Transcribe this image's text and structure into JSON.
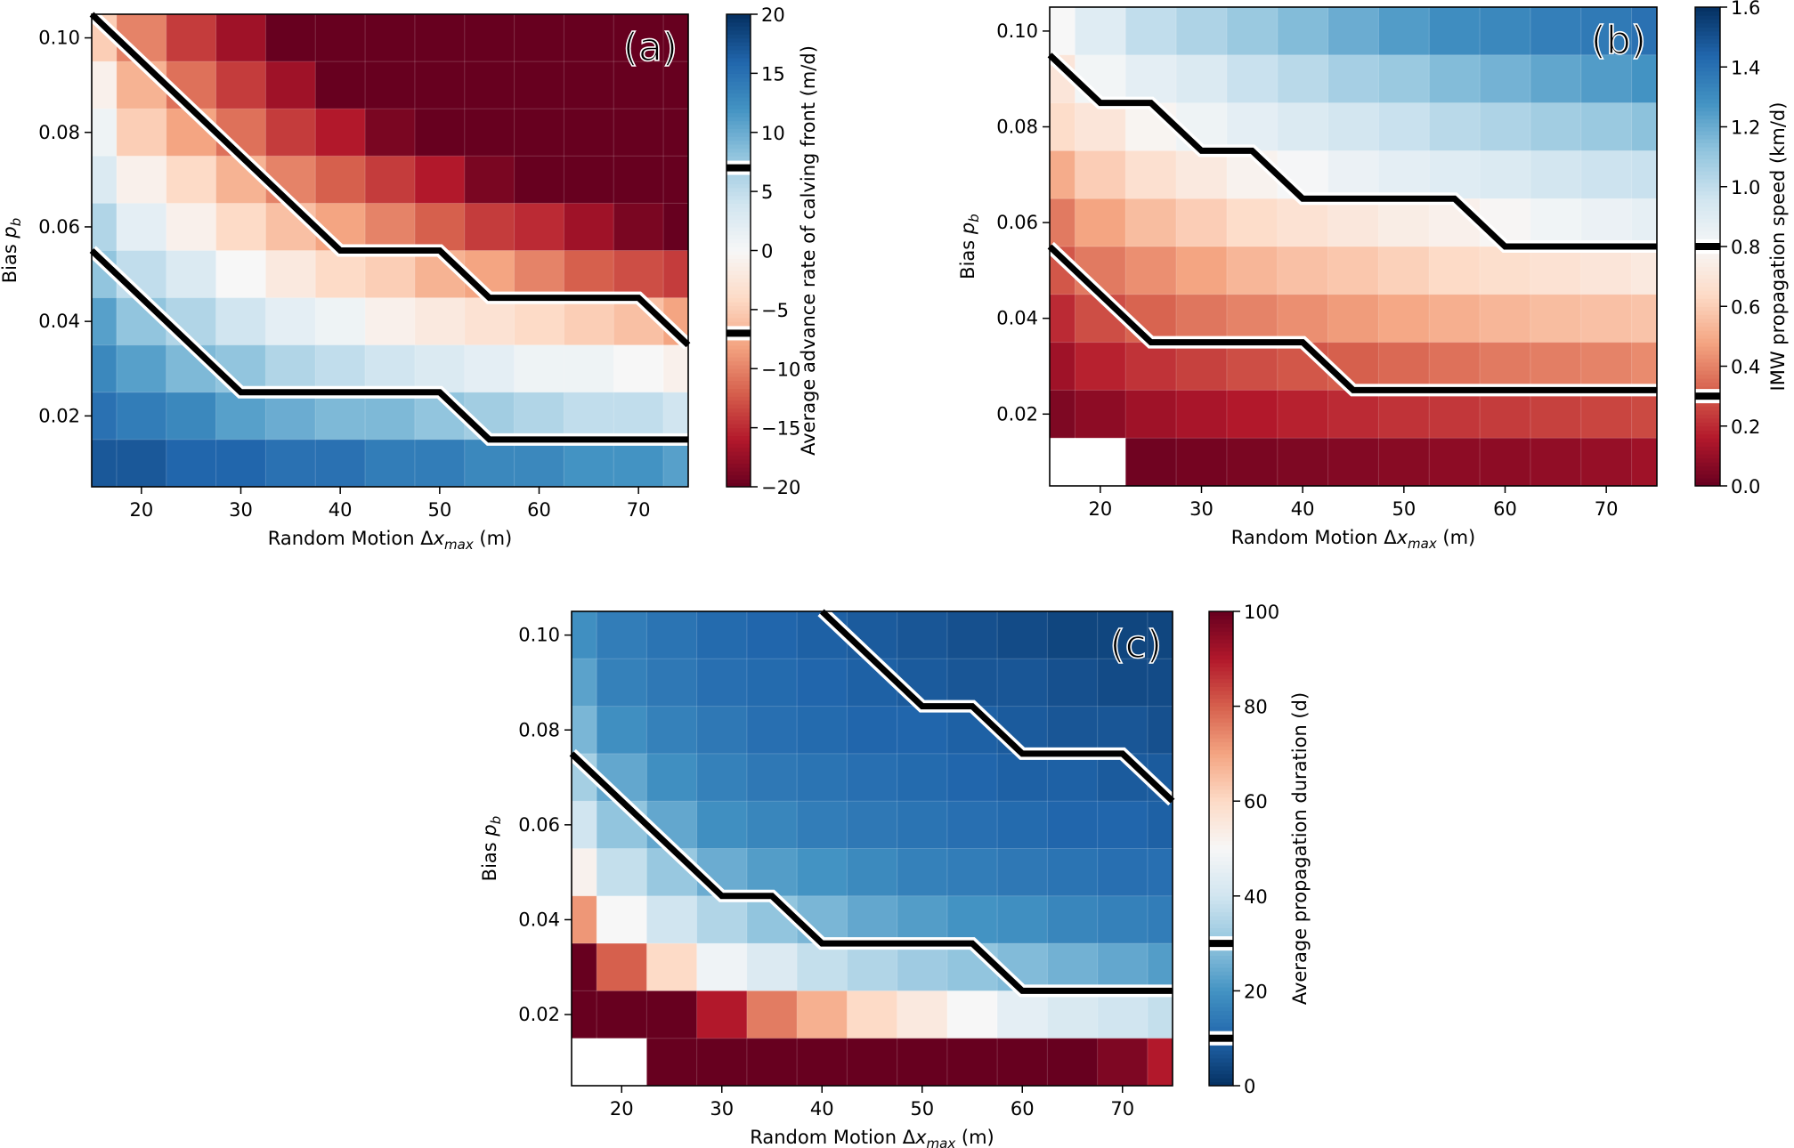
{
  "chart_data": [
    {
      "id": "a",
      "type": "heatmap",
      "panel_label": "(a)",
      "xlabel_main": "Random Motion Δ",
      "xlabel_var": "x",
      "xlabel_sub": "max",
      "xlabel_unit": " (m)",
      "ylabel_main": "Bias ",
      "ylabel_var": "p",
      "ylabel_sub": "b",
      "x": [
        15,
        20,
        25,
        30,
        35,
        40,
        45,
        50,
        55,
        60,
        65,
        70,
        75
      ],
      "y": [
        0.1,
        0.09,
        0.08,
        0.07,
        0.06,
        0.05,
        0.04,
        0.03,
        0.02,
        0.01
      ],
      "xlim": [
        15,
        75
      ],
      "ylim": [
        0.005,
        0.105
      ],
      "xticks": [
        20,
        30,
        40,
        50,
        60,
        70
      ],
      "xtick_labels": [
        "20",
        "30",
        "40",
        "50",
        "60",
        "70"
      ],
      "yticks": [
        0.1,
        0.08,
        0.06,
        0.04,
        0.02
      ],
      "ytick_labels": [
        "0.10",
        "0.08",
        "0.06",
        "0.04",
        "0.02"
      ],
      "colormap": "RdBu",
      "colorbar": {
        "label": "Average advance rate of calving front (m/d)",
        "range": [
          -20,
          20
        ],
        "ticks": [
          20,
          15,
          10,
          5,
          0,
          -5,
          -10,
          -15,
          -20
        ],
        "tick_labels": [
          "20",
          "15",
          "10",
          "5",
          "0",
          "−5",
          "−10",
          "−15",
          "−20"
        ],
        "contour_levels": [
          7,
          -7
        ]
      },
      "values": [
        [
          -5,
          -10,
          -14,
          -17,
          -20,
          -20,
          -20,
          -20,
          -20,
          -20,
          -20,
          -20,
          -20
        ],
        [
          -1,
          -7,
          -11,
          -14,
          -17,
          -20,
          -20,
          -20,
          -20,
          -20,
          -20,
          -20,
          -20
        ],
        [
          1,
          -5,
          -8,
          -11,
          -14,
          -16,
          -19,
          -20,
          -20,
          -20,
          -20,
          -20,
          -20
        ],
        [
          3,
          -1,
          -4,
          -7,
          -10,
          -12,
          -14,
          -16,
          -19,
          -20,
          -20,
          -20,
          -20
        ],
        [
          6,
          2,
          -1,
          -4,
          -6,
          -8,
          -10,
          -12,
          -14,
          -15,
          -17,
          -19,
          -20
        ],
        [
          8,
          5,
          3,
          0,
          -2,
          -4,
          -5,
          -7,
          -8,
          -10,
          -12,
          -13,
          -14
        ],
        [
          11,
          8,
          6,
          4,
          2,
          1,
          -1,
          -2,
          -3,
          -4,
          -5,
          -6,
          -8
        ],
        [
          13,
          11,
          9,
          8,
          6,
          5,
          4,
          3,
          2,
          1,
          1,
          0,
          -1
        ],
        [
          15,
          14,
          13,
          11,
          10,
          9,
          9,
          8,
          7,
          6,
          5,
          5,
          4
        ],
        [
          17,
          17,
          16,
          16,
          15,
          15,
          14,
          14,
          13,
          13,
          12,
          12,
          11
        ]
      ],
      "contours": [
        {
          "level": -7,
          "points": [
            [
              15,
              0.105
            ],
            [
              40,
              0.055
            ],
            [
              50,
              0.055
            ],
            [
              55,
              0.045
            ],
            [
              70,
              0.045
            ],
            [
              75,
              0.035
            ]
          ]
        },
        {
          "level": 7,
          "points": [
            [
              15,
              0.055
            ],
            [
              30,
              0.025
            ],
            [
              50,
              0.025
            ],
            [
              55,
              0.015
            ],
            [
              75,
              0.015
            ]
          ]
        }
      ]
    },
    {
      "id": "b",
      "type": "heatmap",
      "panel_label": "(b)",
      "xlabel_main": "Random Motion Δ",
      "xlabel_var": "x",
      "xlabel_sub": "max",
      "xlabel_unit": " (m)",
      "ylabel_main": "Bias ",
      "ylabel_var": "p",
      "ylabel_sub": "b",
      "x": [
        15,
        20,
        25,
        30,
        35,
        40,
        45,
        50,
        55,
        60,
        65,
        70,
        75
      ],
      "y": [
        0.1,
        0.09,
        0.08,
        0.07,
        0.06,
        0.05,
        0.04,
        0.03,
        0.02,
        0.01
      ],
      "xlim": [
        15,
        75
      ],
      "ylim": [
        0.005,
        0.105
      ],
      "xticks": [
        20,
        30,
        40,
        50,
        60,
        70
      ],
      "xtick_labels": [
        "20",
        "30",
        "40",
        "50",
        "60",
        "70"
      ],
      "yticks": [
        0.1,
        0.08,
        0.06,
        0.04,
        0.02
      ],
      "ytick_labels": [
        "0.10",
        "0.08",
        "0.06",
        "0.04",
        "0.02"
      ],
      "colormap": "RdBu",
      "colorbar": {
        "label": "IMW propagation speed (km/d)",
        "range": [
          0.0,
          1.6
        ],
        "ticks": [
          1.6,
          1.4,
          1.2,
          1.0,
          0.8,
          0.6,
          0.4,
          0.2,
          0.0
        ],
        "tick_labels": [
          "1.6",
          "1.4",
          "1.2",
          "1.0",
          "0.8",
          "0.6",
          "0.4",
          "0.2",
          "0.0"
        ],
        "contour_levels": [
          0.8,
          0.3
        ]
      },
      "values": [
        [
          0.8,
          0.9,
          1.0,
          1.05,
          1.1,
          1.15,
          1.2,
          1.25,
          1.3,
          1.32,
          1.35,
          1.37,
          1.4
        ],
        [
          0.7,
          0.82,
          0.88,
          0.92,
          0.98,
          1.02,
          1.07,
          1.1,
          1.15,
          1.18,
          1.22,
          1.25,
          1.28
        ],
        [
          0.65,
          0.7,
          0.78,
          0.84,
          0.88,
          0.92,
          0.95,
          0.98,
          1.02,
          1.05,
          1.08,
          1.1,
          1.13
        ],
        [
          0.5,
          0.6,
          0.67,
          0.72,
          0.77,
          0.81,
          0.85,
          0.88,
          0.9,
          0.92,
          0.95,
          0.97,
          0.98
        ],
        [
          0.38,
          0.48,
          0.55,
          0.6,
          0.65,
          0.68,
          0.71,
          0.74,
          0.76,
          0.79,
          0.83,
          0.85,
          0.87
        ],
        [
          0.3,
          0.38,
          0.43,
          0.48,
          0.53,
          0.56,
          0.58,
          0.61,
          0.64,
          0.66,
          0.68,
          0.7,
          0.72
        ],
        [
          0.2,
          0.28,
          0.33,
          0.37,
          0.4,
          0.43,
          0.46,
          0.49,
          0.51,
          0.53,
          0.55,
          0.56,
          0.57
        ],
        [
          0.12,
          0.18,
          0.22,
          0.25,
          0.28,
          0.3,
          0.32,
          0.34,
          0.36,
          0.38,
          0.39,
          0.4,
          0.42
        ],
        [
          0.05,
          0.08,
          0.12,
          0.14,
          0.16,
          0.18,
          0.2,
          0.22,
          0.23,
          0.24,
          0.25,
          0.26,
          0.27
        ],
        [
          null,
          null,
          0.02,
          0.03,
          0.04,
          0.05,
          0.06,
          0.07,
          0.08,
          0.08,
          0.09,
          0.1,
          0.12
        ]
      ],
      "contours": [
        {
          "level": 0.8,
          "points": [
            [
              15,
              0.095
            ],
            [
              20,
              0.085
            ],
            [
              25,
              0.085
            ],
            [
              30,
              0.075
            ],
            [
              35,
              0.075
            ],
            [
              40,
              0.065
            ],
            [
              55,
              0.065
            ],
            [
              60,
              0.055
            ],
            [
              75,
              0.055
            ]
          ]
        },
        {
          "level": 0.3,
          "points": [
            [
              15,
              0.055
            ],
            [
              25,
              0.035
            ],
            [
              40,
              0.035
            ],
            [
              45,
              0.025
            ],
            [
              75,
              0.025
            ]
          ]
        }
      ]
    },
    {
      "id": "c",
      "type": "heatmap",
      "panel_label": "(c)",
      "xlabel_main": "Random Motion Δ",
      "xlabel_var": "x",
      "xlabel_sub": "max",
      "xlabel_unit": " (m)",
      "ylabel_main": "Bias ",
      "ylabel_var": "p",
      "ylabel_sub": "b",
      "x": [
        15,
        20,
        25,
        30,
        35,
        40,
        45,
        50,
        55,
        60,
        65,
        70,
        75
      ],
      "y": [
        0.1,
        0.09,
        0.08,
        0.07,
        0.06,
        0.05,
        0.04,
        0.03,
        0.02,
        0.01
      ],
      "xlim": [
        15,
        75
      ],
      "ylim": [
        0.005,
        0.105
      ],
      "xticks": [
        20,
        30,
        40,
        50,
        60,
        70
      ],
      "xtick_labels": [
        "20",
        "30",
        "40",
        "50",
        "60",
        "70"
      ],
      "yticks": [
        0.1,
        0.08,
        0.06,
        0.04,
        0.02
      ],
      "ytick_labels": [
        "0.10",
        "0.08",
        "0.06",
        "0.04",
        "0.02"
      ],
      "colormap": "RdBu_r",
      "colorbar": {
        "label": "Average propagation duration (d)",
        "range": [
          0,
          100
        ],
        "ticks": [
          100,
          80,
          60,
          40,
          20,
          0
        ],
        "tick_labels": [
          "100",
          "80",
          "60",
          "40",
          "20",
          "0"
        ],
        "contour_levels": [
          30,
          10
        ]
      },
      "values": [
        [
          19,
          15,
          13,
          11,
          10,
          9,
          8,
          7,
          6,
          5,
          4,
          4,
          4
        ],
        [
          23,
          16,
          14,
          12,
          11,
          10,
          9,
          8,
          7,
          7,
          6,
          5,
          5
        ],
        [
          27,
          19,
          16,
          14,
          12,
          11,
          10,
          10,
          9,
          8,
          7,
          7,
          6
        ],
        [
          33,
          24,
          19,
          16,
          14,
          13,
          12,
          11,
          10,
          9,
          9,
          8,
          8
        ],
        [
          40,
          30,
          24,
          19,
          17,
          15,
          14,
          13,
          12,
          11,
          10,
          10,
          9
        ],
        [
          52,
          38,
          31,
          25,
          22,
          20,
          18,
          16,
          15,
          14,
          13,
          12,
          12
        ],
        [
          72,
          50,
          40,
          35,
          30,
          27,
          24,
          22,
          20,
          19,
          17,
          16,
          15
        ],
        [
          100,
          80,
          60,
          48,
          43,
          38,
          35,
          32,
          30,
          28,
          26,
          24,
          22
        ],
        [
          100,
          100,
          100,
          90,
          76,
          68,
          60,
          55,
          50,
          45,
          42,
          40,
          38
        ],
        [
          null,
          null,
          100,
          100,
          100,
          100,
          100,
          100,
          100,
          100,
          100,
          97,
          90
        ]
      ],
      "contours": [
        {
          "level": 10,
          "points": [
            [
              40,
              0.105
            ],
            [
              50,
              0.085
            ],
            [
              55,
              0.085
            ],
            [
              60,
              0.075
            ],
            [
              70,
              0.075
            ],
            [
              75,
              0.065
            ]
          ]
        },
        {
          "level": 30,
          "points": [
            [
              15,
              0.075
            ],
            [
              30,
              0.045
            ],
            [
              35,
              0.045
            ],
            [
              40,
              0.035
            ],
            [
              55,
              0.035
            ],
            [
              60,
              0.025
            ],
            [
              75,
              0.025
            ]
          ]
        }
      ]
    }
  ]
}
